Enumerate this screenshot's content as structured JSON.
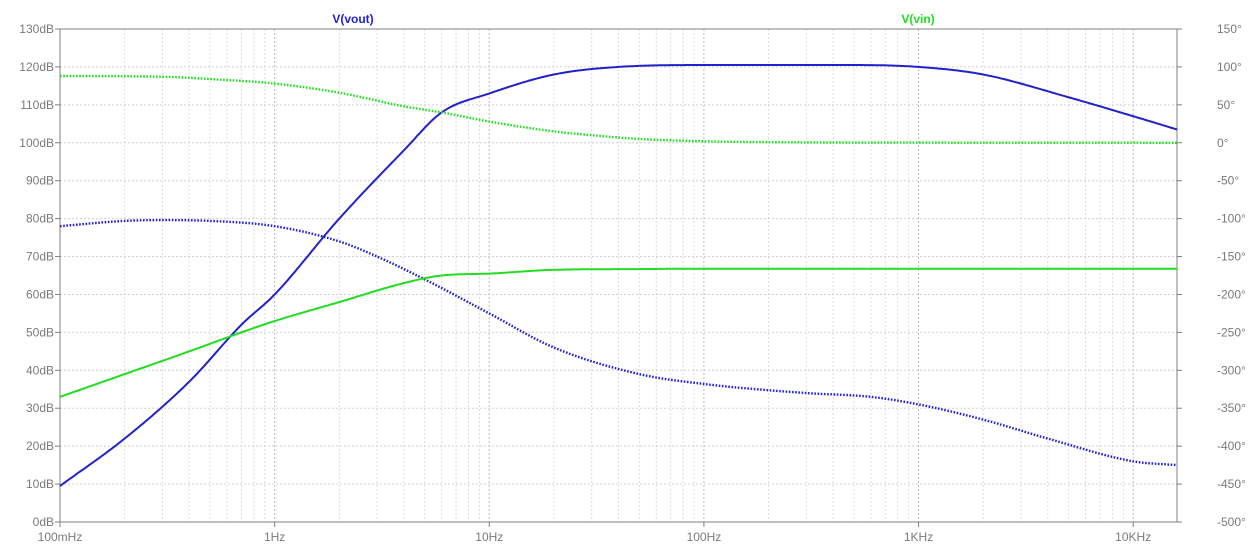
{
  "chart_data": {
    "type": "line",
    "title": "",
    "xlabel": "",
    "ylabel": "",
    "x_scale": "log",
    "xlim_hz": [
      0.1,
      16000
    ],
    "x_ticks": [
      {
        "value": 0.1,
        "label": "100mHz"
      },
      {
        "value": 1,
        "label": "1Hz"
      },
      {
        "value": 10,
        "label": "10Hz"
      },
      {
        "value": 100,
        "label": "100Hz"
      },
      {
        "value": 1000,
        "label": "1KHz"
      },
      {
        "value": 10000,
        "label": "10KHz"
      }
    ],
    "ylim_db": [
      0,
      130
    ],
    "y_ticks_left": [
      "0dB",
      "10dB",
      "20dB",
      "30dB",
      "40dB",
      "50dB",
      "60dB",
      "70dB",
      "80dB",
      "90dB",
      "100dB",
      "110dB",
      "120dB",
      "130dB"
    ],
    "ylim_phase_deg": [
      -500,
      150
    ],
    "y_ticks_right": [
      "-500°",
      "-450°",
      "-400°",
      "-350°",
      "-300°",
      "-250°",
      "-200°",
      "-150°",
      "-100°",
      "-50°",
      "0°",
      "50°",
      "100°",
      "150°"
    ],
    "grid": true,
    "legend": "top",
    "series": [
      {
        "name": "V(vout)",
        "color": "#2222cc",
        "magnitude_db": {
          "x": [
            0.1,
            0.2,
            0.4,
            0.7,
            1,
            2,
            4,
            6,
            10,
            20,
            40,
            100,
            200,
            500,
            1000,
            2000,
            5000,
            10000,
            16000
          ],
          "y": [
            9.5,
            22,
            37,
            52,
            60,
            80,
            98,
            108,
            113,
            118,
            120,
            120.5,
            120.5,
            120.5,
            120,
            118,
            112,
            107,
            103.5
          ]
        },
        "phase_deg": {
          "x": [
            0.1,
            0.2,
            0.3,
            0.5,
            1,
            2,
            3,
            5,
            10,
            20,
            50,
            100,
            300,
            600,
            1000,
            2000,
            4000,
            10000,
            16000
          ],
          "y": [
            -110,
            -103,
            -102,
            -103,
            -110,
            -130,
            -150,
            -180,
            -225,
            -270,
            -305,
            -318,
            -330,
            -335,
            -345,
            -365,
            -390,
            -420,
            -425
          ]
        }
      },
      {
        "name": "V(vin)",
        "color": "#22dd22",
        "magnitude_db": {
          "x": [
            0.1,
            0.2,
            0.4,
            0.7,
            1,
            2,
            4,
            6,
            10,
            20,
            50,
            100,
            1000,
            16000
          ],
          "y": [
            33,
            39,
            45,
            50,
            53,
            58,
            63,
            65,
            65.5,
            66.5,
            66.7,
            66.8,
            66.8,
            66.8
          ]
        },
        "phase_deg": {
          "x": [
            0.1,
            0.3,
            0.5,
            1,
            2,
            4,
            6,
            10,
            20,
            30,
            50,
            100,
            300,
            1000,
            16000
          ],
          "y": [
            88,
            87,
            84,
            78,
            66,
            48,
            40,
            28,
            15,
            10,
            5,
            2,
            0.5,
            0.2,
            0
          ]
        }
      }
    ]
  }
}
